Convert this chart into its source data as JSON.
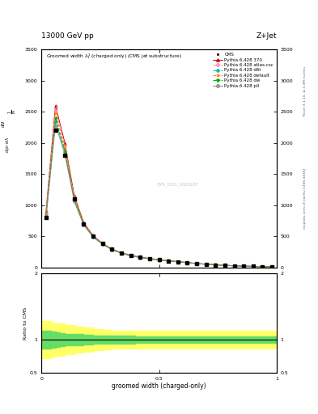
{
  "title_top": "13000 GeV pp",
  "title_right": "Z+Jet",
  "watermark": "CMS_2021_I1920187",
  "xlabel": "groomed width (charged-only)",
  "ylabel_ratio": "Ratio to CMS",
  "right_label_top": "Rivet 3.1.10, ≥ 3.3M events",
  "right_label_bottom": "mcplots.cern.ch [arXiv:1306.3436]",
  "xlim": [
    0,
    1
  ],
  "ylim_main": [
    0,
    3500
  ],
  "ylim_ratio": [
    0.5,
    2.0
  ],
  "x_data": [
    0.02,
    0.06,
    0.1,
    0.14,
    0.18,
    0.22,
    0.26,
    0.3,
    0.34,
    0.38,
    0.42,
    0.46,
    0.5,
    0.54,
    0.58,
    0.62,
    0.66,
    0.7,
    0.74,
    0.78,
    0.82,
    0.86,
    0.9,
    0.94,
    0.98
  ],
  "cms_y": [
    800,
    2200,
    1800,
    1100,
    700,
    500,
    380,
    290,
    230,
    190,
    160,
    140,
    120,
    105,
    90,
    75,
    60,
    50,
    40,
    32,
    25,
    20,
    15,
    10,
    6
  ],
  "py370_y": [
    900,
    2600,
    2000,
    1150,
    720,
    510,
    385,
    295,
    235,
    195,
    165,
    143,
    122,
    107,
    92,
    77,
    62,
    52,
    42,
    33,
    26,
    21,
    16,
    11,
    7
  ],
  "atlas_y": [
    870,
    2550,
    1950,
    1120,
    710,
    505,
    382,
    292,
    232,
    192,
    163,
    141,
    120,
    106,
    91,
    76,
    61,
    51,
    41,
    32,
    25,
    20,
    15,
    10,
    6.5
  ],
  "d6t_y": [
    820,
    2350,
    1850,
    1080,
    690,
    490,
    375,
    285,
    228,
    188,
    158,
    138,
    118,
    104,
    89,
    74,
    59,
    49,
    39,
    31,
    24,
    19,
    14,
    9.5,
    6
  ],
  "default_y": [
    860,
    2480,
    1920,
    1110,
    705,
    500,
    380,
    290,
    231,
    191,
    162,
    141,
    120,
    106,
    91,
    76,
    61,
    51,
    41,
    32,
    25,
    20,
    15,
    10,
    6.5
  ],
  "dw_y": [
    830,
    2400,
    1870,
    1090,
    695,
    493,
    377,
    287,
    229,
    189,
    160,
    139,
    119,
    105,
    90,
    75,
    60,
    50,
    40,
    31,
    24,
    19,
    14,
    9.5,
    6
  ],
  "p0_y": [
    810,
    2300,
    1820,
    1060,
    680,
    485,
    372,
    283,
    226,
    186,
    157,
    136,
    117,
    103,
    88,
    73,
    58,
    48,
    38,
    30,
    23,
    18,
    13,
    9,
    5.8
  ],
  "cms_color": "#000000",
  "py370_color": "#cc0000",
  "atlas_color": "#ff88bb",
  "d6t_color": "#00bbbb",
  "default_color": "#ff8800",
  "dw_color": "#00aa00",
  "p0_color": "#888888",
  "yticks_main": [
    0,
    500,
    1000,
    1500,
    2000,
    2500,
    3000,
    3500
  ],
  "ratio_band_x": [
    0.0,
    0.04,
    0.06,
    0.08,
    0.1,
    0.14,
    0.18,
    0.22,
    0.26,
    0.3,
    0.4,
    0.5,
    1.0
  ],
  "ratio_yellow_lo": [
    0.72,
    0.74,
    0.75,
    0.76,
    0.78,
    0.8,
    0.82,
    0.84,
    0.85,
    0.86,
    0.87,
    0.87,
    0.87
  ],
  "ratio_yellow_hi": [
    1.28,
    1.26,
    1.25,
    1.24,
    1.22,
    1.2,
    1.18,
    1.16,
    1.15,
    1.14,
    1.13,
    1.13,
    1.13
  ],
  "ratio_green_lo": [
    0.87,
    0.88,
    0.89,
    0.9,
    0.91,
    0.92,
    0.93,
    0.94,
    0.94,
    0.94,
    0.95,
    0.95,
    0.95
  ],
  "ratio_green_hi": [
    1.13,
    1.12,
    1.11,
    1.1,
    1.09,
    1.08,
    1.07,
    1.06,
    1.06,
    1.06,
    1.05,
    1.05,
    1.05
  ]
}
